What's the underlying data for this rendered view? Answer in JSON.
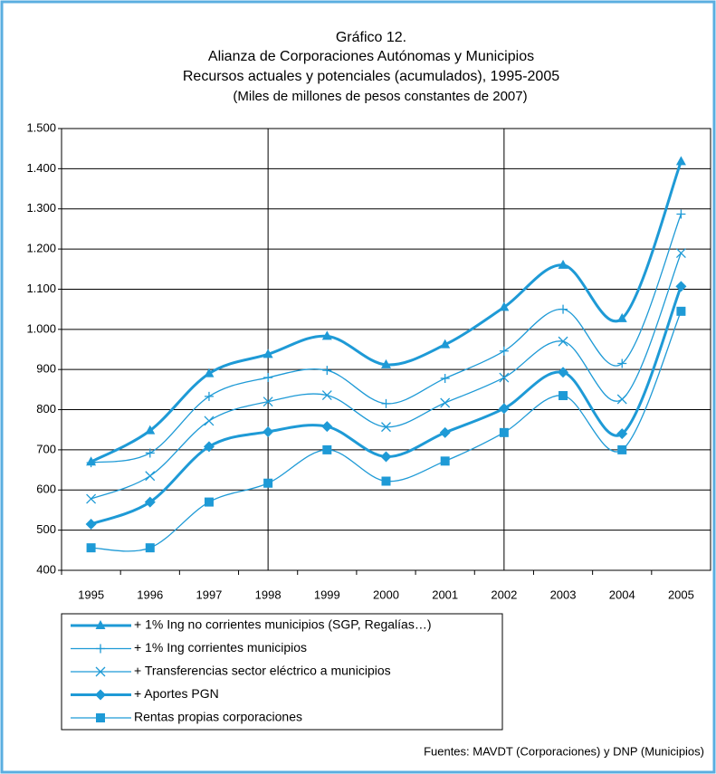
{
  "chart_data": {
    "type": "line",
    "title": "Gráfico 12.",
    "subtitle": [
      "Alianza de Corporaciones Autónomas y Municipios",
      "Recursos actuales y potenciales (acumulados), 1995-2005",
      "(Miles de millones de pesos constantes de 2007)"
    ],
    "source": "Fuentes: MAVDT (Corporaciones) y DNP (Municipios)",
    "categories": [
      "1995",
      "1996",
      "1997",
      "1998",
      "1999",
      "2000",
      "2001",
      "2002",
      "2003",
      "2004",
      "2005"
    ],
    "ylim": [
      400,
      1500
    ],
    "yticks": [
      400,
      500,
      600,
      700,
      800,
      900,
      {
        "value": 1000,
        "label": "1.000"
      },
      {
        "value": 1100,
        "label": "1.100"
      },
      {
        "value": 1200,
        "label": "1.200"
      },
      {
        "value": 1300,
        "label": "1.300"
      },
      {
        "value": 1400,
        "label": "1.400"
      },
      {
        "value": 1500,
        "label": "1.500"
      }
    ],
    "grid": true,
    "series": [
      {
        "name": "+ 1% Ing no corrientes municipios (SGP, Regalías…)",
        "color": "#1e9ad6",
        "marker": "triangle",
        "line_width": 3,
        "values": [
          670,
          748,
          890,
          938,
          983,
          912,
          962,
          1055,
          1160,
          1027,
          1418
        ]
      },
      {
        "name": "+ 1% Ing corrientes municipios",
        "color": "#1e9ad6",
        "marker": "plus",
        "line_width": 1.3,
        "values": [
          668,
          692,
          833,
          880,
          898,
          815,
          878,
          946,
          1050,
          915,
          1287
        ]
      },
      {
        "name": "+ Transferencias sector eléctrico a municipios",
        "color": "#1e9ad6",
        "marker": "x",
        "line_width": 1.3,
        "values": [
          578,
          635,
          772,
          820,
          836,
          757,
          817,
          880,
          970,
          826,
          1190
        ]
      },
      {
        "name": "+ Aportes PGN",
        "color": "#1e9ad6",
        "marker": "diamond",
        "line_width": 3,
        "values": [
          515,
          570,
          708,
          745,
          758,
          683,
          743,
          803,
          893,
          740,
          1107
        ]
      },
      {
        "name": "Rentas propias corporaciones",
        "color": "#1e9ad6",
        "marker": "square",
        "line_width": 1.3,
        "values": [
          456,
          456,
          570,
          617,
          700,
          622,
          672,
          743,
          835,
          700,
          1045
        ]
      }
    ]
  }
}
